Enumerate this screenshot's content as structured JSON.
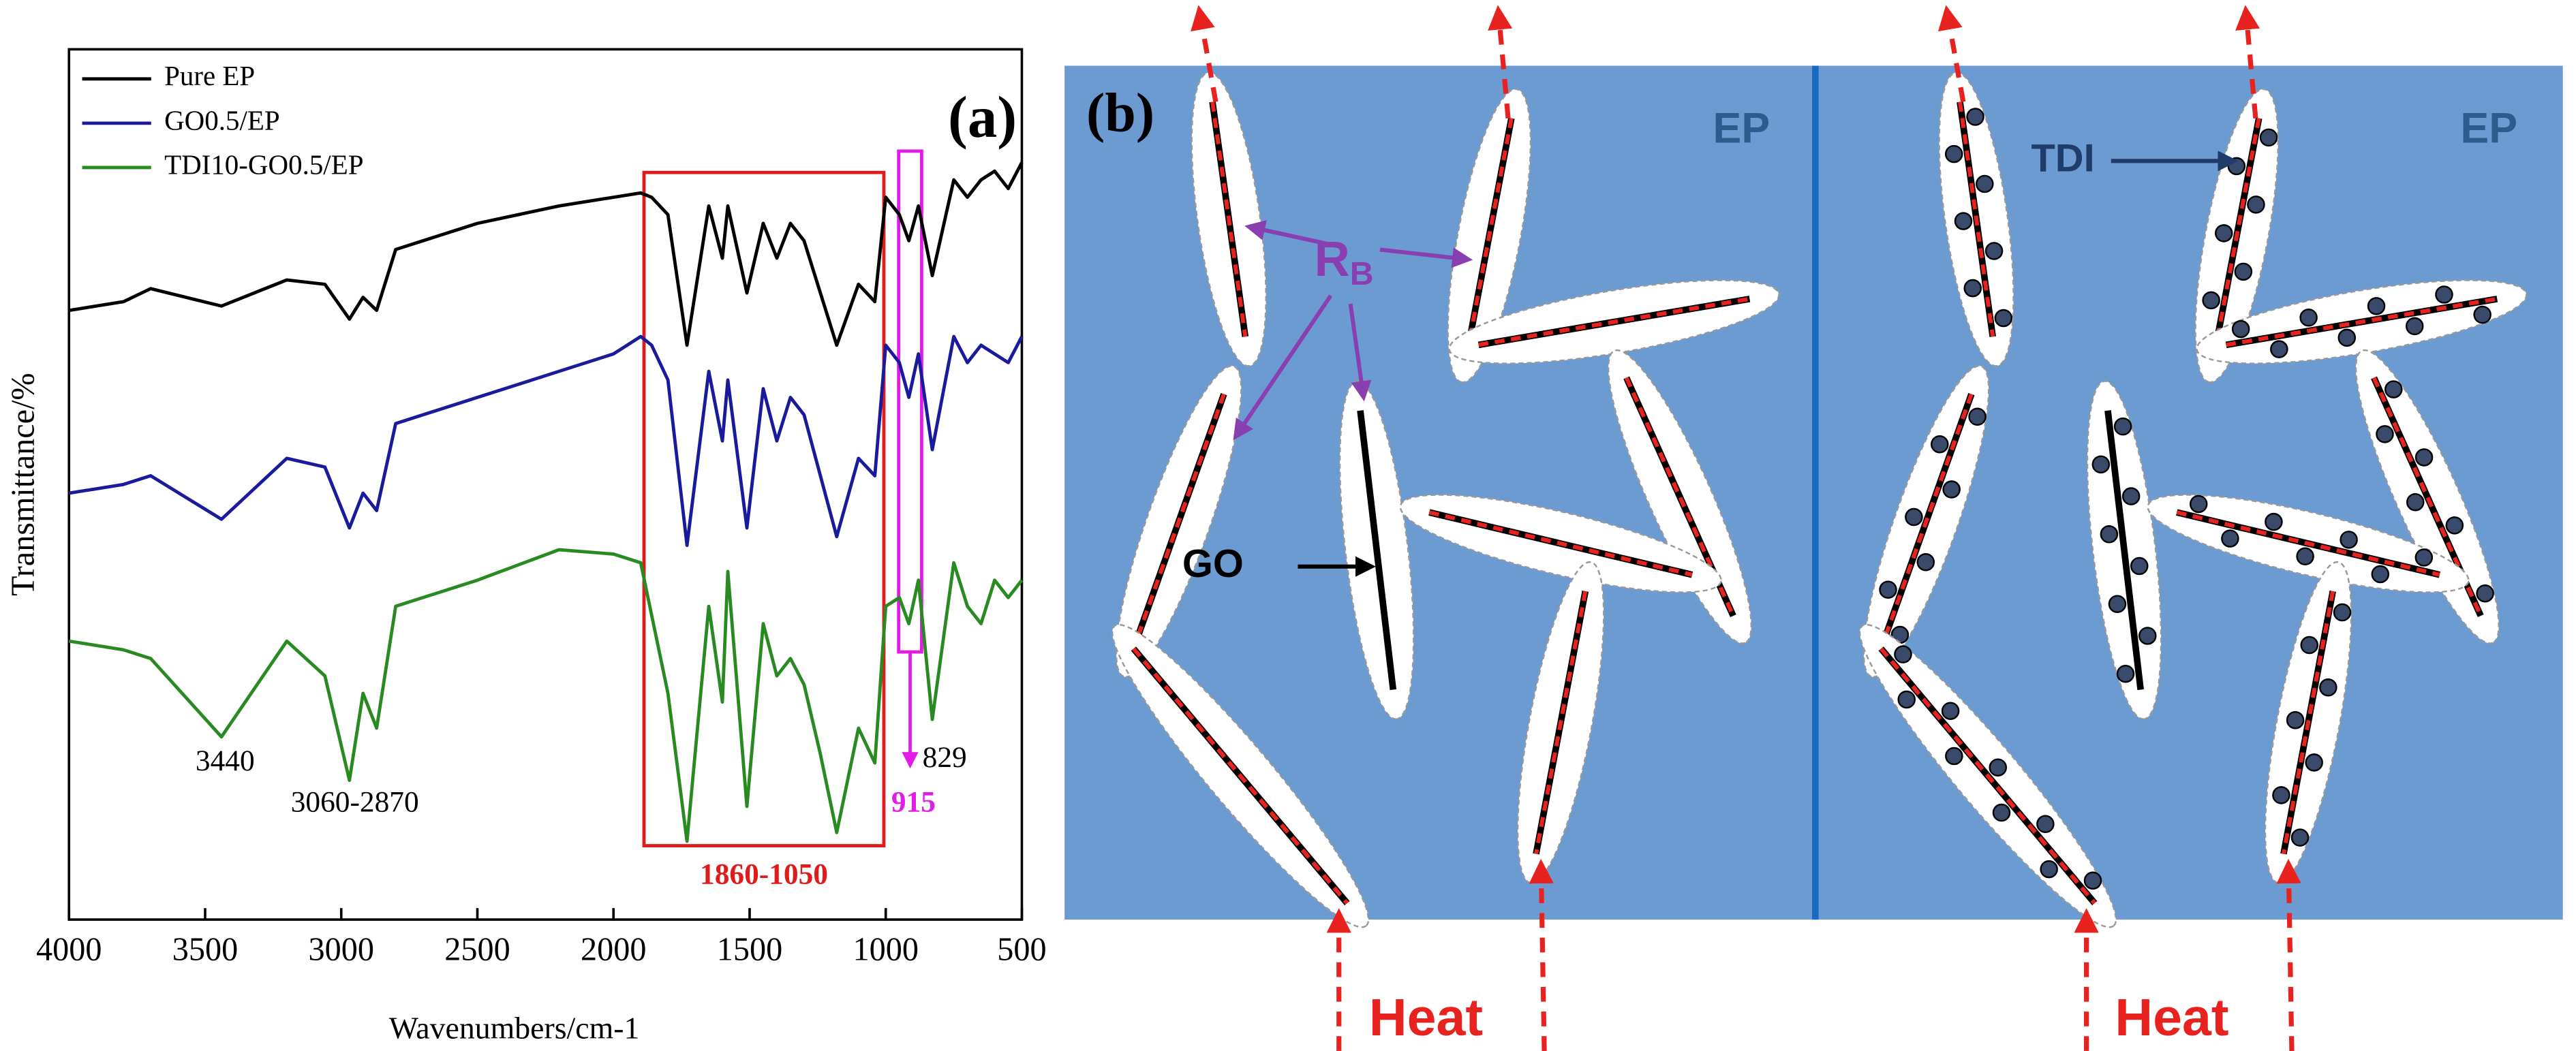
{
  "chart_data": {
    "type": "line",
    "panel_label": "(a)",
    "xlabel": "Wavenumbers/cm-1",
    "ylabel": "Transmittance/%",
    "xlim": [
      4000,
      500
    ],
    "xticks": [
      4000,
      3500,
      3000,
      2500,
      2000,
      1500,
      1000,
      500
    ],
    "ylim": [
      0,
      100
    ],
    "legend": "upper left",
    "x": [
      4000,
      3800,
      3700,
      3440,
      3200,
      3060,
      2970,
      2920,
      2870,
      2800,
      2500,
      2200,
      2000,
      1900,
      1860,
      1800,
      1730,
      1650,
      1600,
      1580,
      1510,
      1450,
      1400,
      1350,
      1300,
      1240,
      1180,
      1100,
      1040,
      1000,
      950,
      915,
      880,
      829,
      750,
      700,
      650,
      600,
      550,
      500
    ],
    "series": [
      {
        "name": "Pure EP",
        "color": "#000000",
        "values": [
          70,
          71,
          72.5,
          70.5,
          73.5,
          73,
          69,
          71.5,
          70,
          77,
          80,
          82,
          83,
          83.5,
          83,
          81,
          66,
          82,
          76,
          82,
          72,
          80,
          76,
          80,
          78,
          72,
          66,
          73,
          71,
          83,
          81,
          78,
          82,
          74,
          85,
          83,
          85,
          86,
          84,
          87
        ]
      },
      {
        "name": "GO0.5/EP",
        "color": "#1a1a9c",
        "values": [
          49,
          50,
          51,
          46,
          53,
          52,
          45,
          49,
          47,
          57,
          60,
          63,
          65,
          67,
          66,
          62,
          43,
          63,
          55,
          62,
          45,
          61,
          55,
          60,
          58,
          51,
          44,
          53,
          51,
          66,
          64,
          60,
          65,
          54,
          67,
          64,
          66,
          65,
          64,
          67
        ]
      },
      {
        "name": "TDI10-GO0.5/EP",
        "color": "#2a8a22",
        "values": [
          32,
          31,
          30,
          21,
          32,
          28,
          16,
          26,
          22,
          36,
          39,
          42.5,
          42,
          41,
          35,
          26,
          9,
          36,
          25,
          40,
          13,
          34,
          28,
          30,
          27,
          19,
          10,
          22,
          18,
          36,
          37,
          34,
          39,
          23,
          41,
          36,
          34,
          39,
          37,
          39
        ]
      }
    ],
    "annotations": [
      "3440",
      "3060-2870",
      "829",
      "915",
      "1860-1050"
    ]
  },
  "diagram": {
    "panel_label": "(b)",
    "ep_left": "EP",
    "ep_right": "EP",
    "rb_main": "R",
    "rb_sub": "B",
    "go": "GO",
    "tdi": "TDI",
    "heat_left": "Heat",
    "heat_right": "Heat"
  }
}
